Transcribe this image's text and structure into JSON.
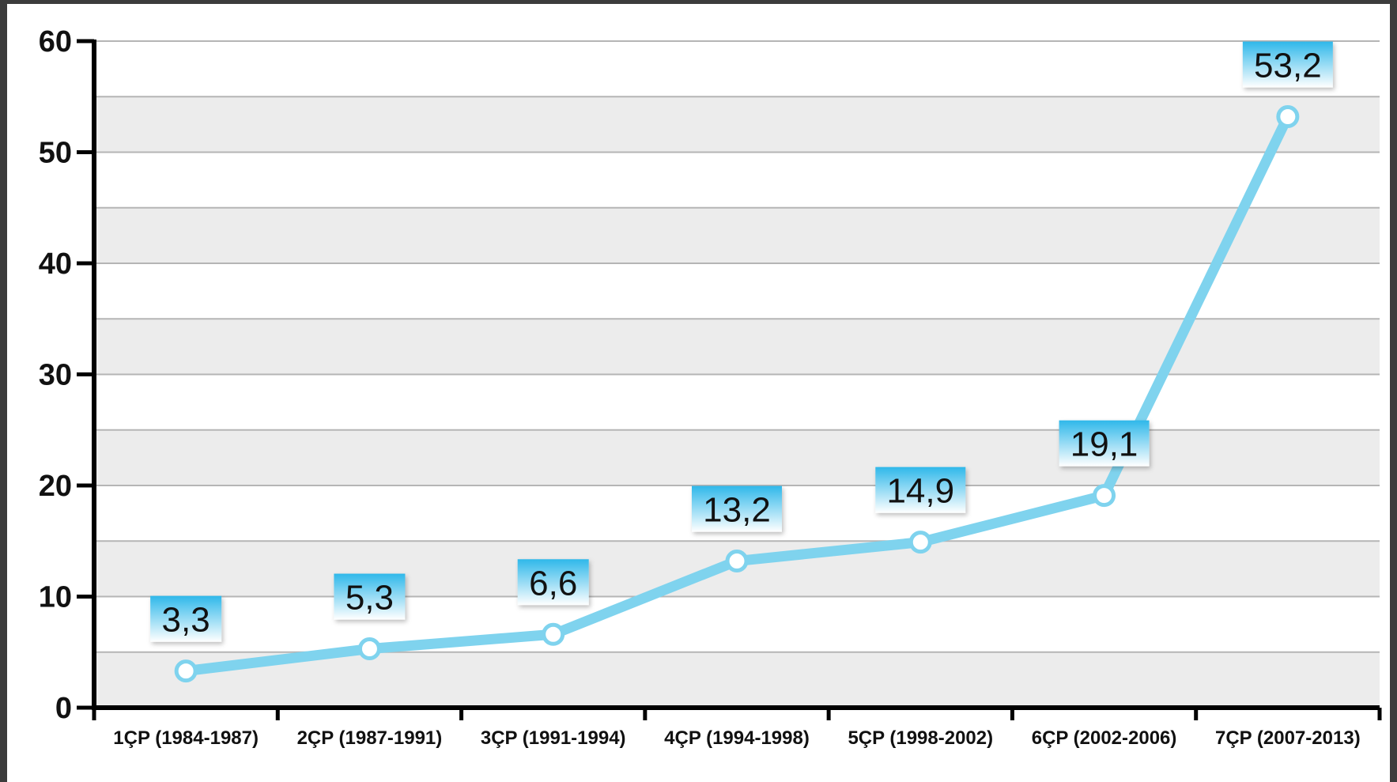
{
  "chart_data": {
    "type": "line",
    "title": "",
    "xlabel": "",
    "ylabel": "",
    "categories": [
      "1ÇP (1984-1987)",
      "2ÇP (1987-1991)",
      "3ÇP (1991-1994)",
      "4ÇP (1994-1998)",
      "5ÇP (1998-2002)",
      "6ÇP (2002-2006)",
      "7ÇP (2007-2013)"
    ],
    "series": [
      {
        "values": [
          3.3,
          5.3,
          6.6,
          13.2,
          14.9,
          19.1,
          53.2
        ],
        "labels": [
          "3,3",
          "5,3",
          "6,6",
          "13,2",
          "14,9",
          "19,1",
          "53,2"
        ],
        "color": "#7fd3ee"
      }
    ],
    "ylim": [
      0,
      60
    ],
    "yticks": [
      0,
      10,
      20,
      30,
      40,
      50,
      60
    ],
    "grid": true,
    "legend": "none",
    "colors": {
      "line": "#7fd3ee",
      "label_box_top": "#2fb8ea",
      "label_box_bottom": "#ffffff",
      "band": "#ececec",
      "axis": "#000000"
    }
  }
}
